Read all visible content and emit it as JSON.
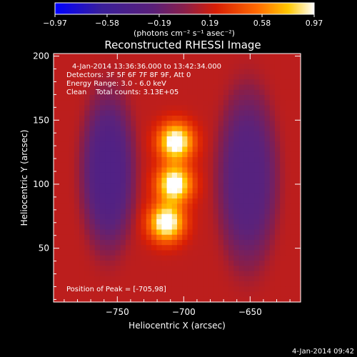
{
  "chart_data": {
    "type": "heatmap",
    "title": "Reconstructed RHESSI Image",
    "xlabel": "Heliocentric X (arcsec)",
    "ylabel": "Heliocentric Y (arcsec)",
    "xlim": [
      -798,
      -612
    ],
    "ylim": [
      8,
      202
    ],
    "x_ticks": [
      -750,
      -700,
      -650
    ],
    "y_ticks": [
      50,
      100,
      150,
      200
    ],
    "colorbar": {
      "ticks": [
        -0.97,
        -0.58,
        -0.19,
        0.19,
        0.58,
        0.97
      ],
      "tick_labels": [
        "-0.97",
        "-0.58",
        "-0.19",
        "0.19",
        "0.58",
        "0.97"
      ],
      "unit": "(photons cm⁻² s⁻¹ asec⁻²)",
      "colormap_stops": [
        "#0000ff",
        "#4b1f8a",
        "#7a2a9a",
        "#c4191c",
        "#ff5a00",
        "#ffc000",
        "#ffffff"
      ]
    },
    "annotations": [
      "4-Jan-2014 13:36:36.000 to 13:42:34.000",
      "Detectors: 3F 5F 6F 7F 8F 9F, Att 0",
      "Energy Range: 3.0 - 6.0 keV",
      "Clean    Total counts: 3.13E+05"
    ],
    "peak_label": "Position of Peak = [-705,98]",
    "sources": [
      {
        "x": -706,
        "y": 133,
        "sx": 9,
        "sy": 10,
        "value": 0.97
      },
      {
        "x": -707,
        "y": 100,
        "sx": 9,
        "sy": 10,
        "value": 0.97
      },
      {
        "x": -713,
        "y": 70,
        "sx": 9,
        "sy": 10,
        "value": 0.97
      }
    ],
    "negative_lobes": [
      {
        "x": -757,
        "y": 110,
        "sx": 17,
        "sy": 52,
        "value": -0.35
      },
      {
        "x": -652,
        "y": 105,
        "sx": 19,
        "sy": 58,
        "value": -0.3
      }
    ]
  },
  "footer_date": "4-Jan-2014 09:42"
}
